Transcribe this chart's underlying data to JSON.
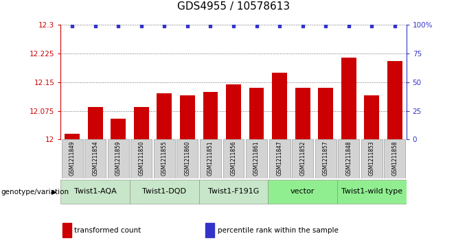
{
  "title": "GDS4955 / 10578613",
  "samples": [
    "GSM1211849",
    "GSM1211854",
    "GSM1211859",
    "GSM1211850",
    "GSM1211855",
    "GSM1211860",
    "GSM1211851",
    "GSM1211856",
    "GSM1211861",
    "GSM1211847",
    "GSM1211852",
    "GSM1211857",
    "GSM1211848",
    "GSM1211853",
    "GSM1211858"
  ],
  "bar_values": [
    12.015,
    12.085,
    12.055,
    12.085,
    12.12,
    12.115,
    12.125,
    12.145,
    12.135,
    12.175,
    12.135,
    12.135,
    12.215,
    12.115,
    12.205
  ],
  "percentile_values": [
    99,
    99,
    99,
    99,
    99,
    99,
    99,
    99,
    99,
    99,
    99,
    99,
    99,
    99,
    99
  ],
  "bar_color": "#cc0000",
  "percentile_color": "#3333cc",
  "ymin": 12.0,
  "ymax": 12.3,
  "yticks": [
    12.0,
    12.075,
    12.15,
    12.225,
    12.3
  ],
  "ytick_labels": [
    "12",
    "12.075",
    "12.15",
    "12.225",
    "12.3"
  ],
  "y2min": 0,
  "y2max": 100,
  "y2ticks": [
    0,
    25,
    50,
    75,
    100
  ],
  "y2tick_labels": [
    "0",
    "25",
    "50",
    "75",
    "100%"
  ],
  "groups": [
    {
      "label": "Twist1-AQA",
      "start": 0,
      "end": 3,
      "color": "#c8e6c9"
    },
    {
      "label": "Twist1-DQD",
      "start": 3,
      "end": 6,
      "color": "#c8e6c9"
    },
    {
      "label": "Twist1-F191G",
      "start": 6,
      "end": 9,
      "color": "#c8e6c9"
    },
    {
      "label": "vector",
      "start": 9,
      "end": 12,
      "color": "#90ee90"
    },
    {
      "label": "Twist1-wild type",
      "start": 12,
      "end": 15,
      "color": "#90ee90"
    }
  ],
  "group_label_text": "genotype/variation",
  "legend_items": [
    {
      "color": "#cc0000",
      "label": "transformed count"
    },
    {
      "color": "#3333cc",
      "label": "percentile rank within the sample"
    }
  ],
  "background_color": "#ffffff",
  "sample_box_color": "#d3d3d3",
  "title_fontsize": 11,
  "tick_fontsize": 7.5,
  "sample_fontsize": 5.5,
  "group_fontsize": 8,
  "legend_fontsize": 7.5
}
